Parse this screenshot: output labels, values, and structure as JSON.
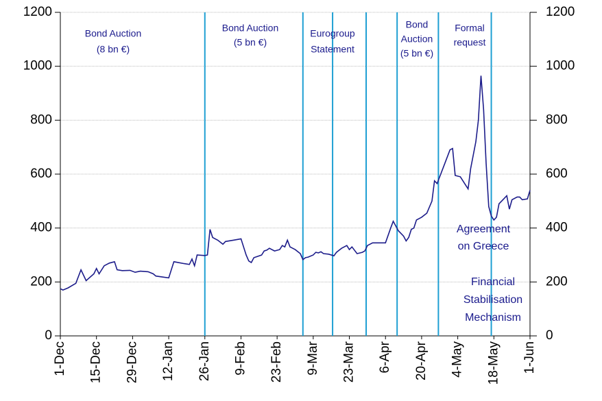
{
  "chart_data": {
    "type": "line",
    "x": [
      0,
      1,
      3,
      6,
      8,
      10,
      13,
      14,
      15,
      17,
      19,
      21,
      22,
      24,
      27,
      29,
      31,
      34,
      36,
      37,
      40,
      42,
      44,
      48,
      50,
      51,
      52,
      53,
      56,
      57,
      58,
      59,
      61,
      63,
      64,
      67,
      70,
      72,
      73,
      74,
      75,
      78,
      79,
      80,
      81,
      83,
      85,
      86,
      87,
      88,
      89,
      91,
      93,
      94,
      95,
      96,
      98,
      99,
      100,
      101,
      102,
      104,
      106,
      107,
      109,
      111,
      112,
      113,
      115,
      117,
      118,
      119,
      121,
      123,
      126,
      128,
      129,
      131,
      133,
      134,
      135,
      136,
      137,
      138,
      140,
      142,
      144,
      145,
      146,
      147,
      149,
      151,
      152,
      153,
      155,
      157,
      158,
      159,
      161,
      162,
      163,
      164,
      165,
      166,
      167,
      168,
      169,
      170,
      172,
      173,
      174,
      175,
      177,
      178,
      179,
      181,
      182
    ],
    "series": [
      {
        "color": "#1c1c8a",
        "values": [
          175,
          170,
          178,
          195,
          245,
          205,
          230,
          250,
          230,
          260,
          270,
          275,
          245,
          242,
          243,
          236,
          240,
          238,
          230,
          222,
          218,
          215,
          275,
          268,
          265,
          285,
          260,
          300,
          298,
          300,
          395,
          365,
          355,
          340,
          350,
          355,
          360,
          300,
          278,
          272,
          290,
          300,
          315,
          318,
          325,
          315,
          320,
          335,
          330,
          355,
          330,
          320,
          305,
          283,
          290,
          292,
          300,
          310,
          308,
          312,
          305,
          303,
          297,
          310,
          325,
          335,
          320,
          330,
          305,
          310,
          315,
          335,
          345,
          345,
          345,
          400,
          425,
          390,
          370,
          352,
          365,
          395,
          400,
          430,
          440,
          455,
          500,
          575,
          565,
          590,
          640,
          690,
          695,
          595,
          590,
          560,
          545,
          620,
          720,
          800,
          965,
          840,
          640,
          480,
          445,
          430,
          440,
          490,
          510,
          520,
          470,
          505,
          515,
          515,
          505,
          508,
          540
        ]
      }
    ],
    "xlim": [
      0,
      182
    ],
    "xticks": [
      {
        "value": 0,
        "label": "1-Dec"
      },
      {
        "value": 14,
        "label": "15-Dec"
      },
      {
        "value": 28,
        "label": "29-Dec"
      },
      {
        "value": 42,
        "label": "12-Jan"
      },
      {
        "value": 56,
        "label": "26-Jan"
      },
      {
        "value": 70,
        "label": "9-Feb"
      },
      {
        "value": 84,
        "label": "23-Feb"
      },
      {
        "value": 98,
        "label": "9-Mar"
      },
      {
        "value": 112,
        "label": "23-Mar"
      },
      {
        "value": 126,
        "label": "6-Apr"
      },
      {
        "value": 140,
        "label": "20-Apr"
      },
      {
        "value": 154,
        "label": "4-May"
      },
      {
        "value": 168,
        "label": "18-May"
      },
      {
        "value": 182,
        "label": "1-Jun"
      }
    ],
    "ylim": [
      0,
      1200
    ],
    "yticks": [
      0,
      200,
      400,
      600,
      800,
      1000,
      1200
    ],
    "y2lim": [
      0,
      1200
    ],
    "y2ticks": [
      0,
      200,
      400,
      600,
      800,
      1000,
      1200
    ],
    "grid": true,
    "events": [
      56,
      94,
      105.5,
      118.5,
      130.5,
      146.5,
      167
    ],
    "event_color": "#1e9fd3",
    "annotations": [
      {
        "lines": [
          "Bond Auction",
          "(8 bn €)"
        ]
      },
      {
        "lines": [
          "Bond Auction",
          "(5 bn €)"
        ]
      },
      {
        "lines": [
          "Eurogroup",
          "Statement"
        ]
      },
      {
        "lines": [
          "Bond",
          "Auction",
          "(5 bn €)"
        ]
      },
      {
        "lines": [
          "Formal",
          "request"
        ]
      },
      {
        "lines": [
          "Agreement",
          "on Greece"
        ]
      },
      {
        "lines": [
          "Financial",
          "Stabilisation",
          "Mechanism"
        ]
      }
    ]
  }
}
